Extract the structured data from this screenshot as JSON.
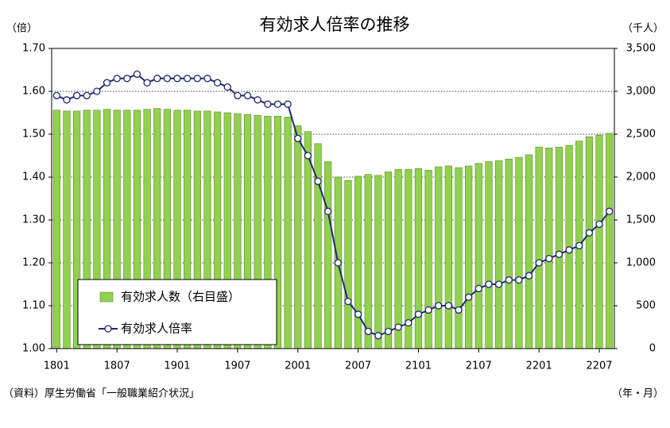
{
  "chart_data": {
    "type": "combo",
    "title": "有効求人倍率の推移",
    "y_unit_label": "（倍）",
    "y2_unit_label": "（千人）",
    "x_unit_label": "（年・月）",
    "source": "（資料）厚生労働省「一般職業紹介状況」",
    "categories": [
      "1801",
      null,
      null,
      null,
      null,
      null,
      "1807",
      null,
      null,
      null,
      null,
      null,
      "1901",
      null,
      null,
      null,
      null,
      null,
      "1907",
      null,
      null,
      null,
      null,
      null,
      "2001",
      null,
      null,
      null,
      null,
      null,
      "2007",
      null,
      null,
      null,
      null,
      null,
      "2101",
      null,
      null,
      null,
      null,
      null,
      "2107",
      null,
      null,
      null,
      null,
      null,
      "2201",
      null,
      null,
      null,
      null,
      null,
      "2207",
      null
    ],
    "series": [
      {
        "name": "有効求人数（右目盛）",
        "type": "bar",
        "axis": "y2",
        "color": "#92d050",
        "values": [
          2780,
          2770,
          2770,
          2780,
          2780,
          2790,
          2780,
          2780,
          2780,
          2790,
          2800,
          2790,
          2780,
          2780,
          2770,
          2770,
          2760,
          2750,
          2740,
          2730,
          2720,
          2710,
          2710,
          2700,
          2600,
          2530,
          2390,
          2180,
          2000,
          1960,
          2010,
          2030,
          2020,
          2060,
          2090,
          2090,
          2100,
          2080,
          2120,
          2130,
          2110,
          2130,
          2160,
          2180,
          2190,
          2210,
          2230,
          2260,
          2350,
          2340,
          2350,
          2370,
          2420,
          2470,
          2490,
          2510
        ]
      },
      {
        "name": "有効求人倍率",
        "type": "line",
        "axis": "y",
        "color": "#1f2a6e",
        "values": [
          1.59,
          1.58,
          1.59,
          1.59,
          1.6,
          1.62,
          1.63,
          1.63,
          1.64,
          1.62,
          1.63,
          1.63,
          1.63,
          1.63,
          1.63,
          1.63,
          1.62,
          1.61,
          1.59,
          1.59,
          1.58,
          1.57,
          1.57,
          1.57,
          1.49,
          1.45,
          1.39,
          1.32,
          1.2,
          1.11,
          1.08,
          1.04,
          1.03,
          1.04,
          1.05,
          1.06,
          1.08,
          1.09,
          1.1,
          1.1,
          1.09,
          1.12,
          1.14,
          1.15,
          1.15,
          1.16,
          1.16,
          1.17,
          1.2,
          1.21,
          1.22,
          1.23,
          1.24,
          1.27,
          1.29,
          1.32
        ]
      }
    ],
    "ylim": [
      1.0,
      1.7
    ],
    "yticks": [
      {
        "value": 1.0,
        "label": "1.00"
      },
      {
        "value": 1.1,
        "label": "1.10"
      },
      {
        "value": 1.2,
        "label": "1.20"
      },
      {
        "value": 1.3,
        "label": "1.30"
      },
      {
        "value": 1.4,
        "label": "1.40"
      },
      {
        "value": 1.5,
        "label": "1.50"
      },
      {
        "value": 1.6,
        "label": "1.60"
      },
      {
        "value": 1.7,
        "label": "1.70"
      }
    ],
    "y2lim": [
      0,
      3500
    ],
    "y2ticks": [
      0,
      500,
      {
        "value": 1000,
        "label": "1,000"
      },
      {
        "value": 1500,
        "label": "1,500"
      },
      {
        "value": 2000,
        "label": "2,000"
      },
      {
        "value": 2500,
        "label": "2,500"
      },
      {
        "value": 3000,
        "label": "3,000"
      },
      {
        "value": 3500,
        "label": "3,500"
      }
    ],
    "grid": true,
    "legend": "lower-left"
  }
}
